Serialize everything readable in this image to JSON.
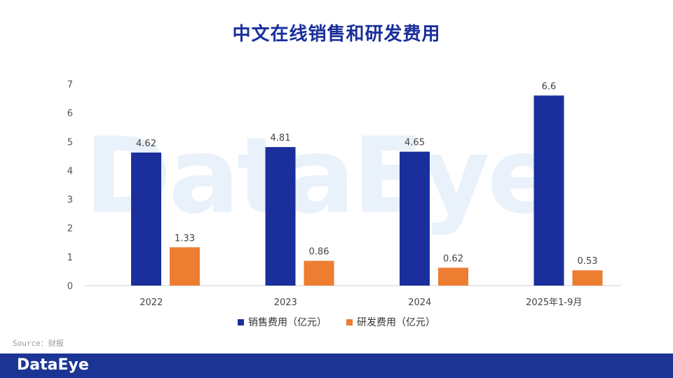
{
  "page": {
    "title": "中文在线销售和研发费用",
    "source": "Source：财报",
    "watermark": "DataEye",
    "footer_logo": "DataEye"
  },
  "chart_data": {
    "type": "bar",
    "title": "中文在线销售和研发费用",
    "categories": [
      "2022",
      "2023",
      "2024",
      "2025年1-9月"
    ],
    "series": [
      {
        "name": "销售费用（亿元）",
        "values": [
          4.62,
          4.81,
          4.65,
          6.6
        ],
        "labels": [
          "4.62",
          "4.81",
          "4.65",
          "6.6"
        ],
        "color": "#1a2f9c"
      },
      {
        "name": "研发费用（亿元）",
        "values": [
          1.33,
          0.86,
          0.62,
          0.53
        ],
        "labels": [
          "1.33",
          "0.86",
          "0.62",
          "0.53"
        ],
        "color": "#ed7d31"
      }
    ],
    "ylim": [
      0,
      7
    ],
    "yticks": [
      0,
      1,
      2,
      3,
      4,
      5,
      6,
      7
    ],
    "xlabel": "",
    "ylabel": "",
    "grid": false,
    "legend": "bottom"
  }
}
